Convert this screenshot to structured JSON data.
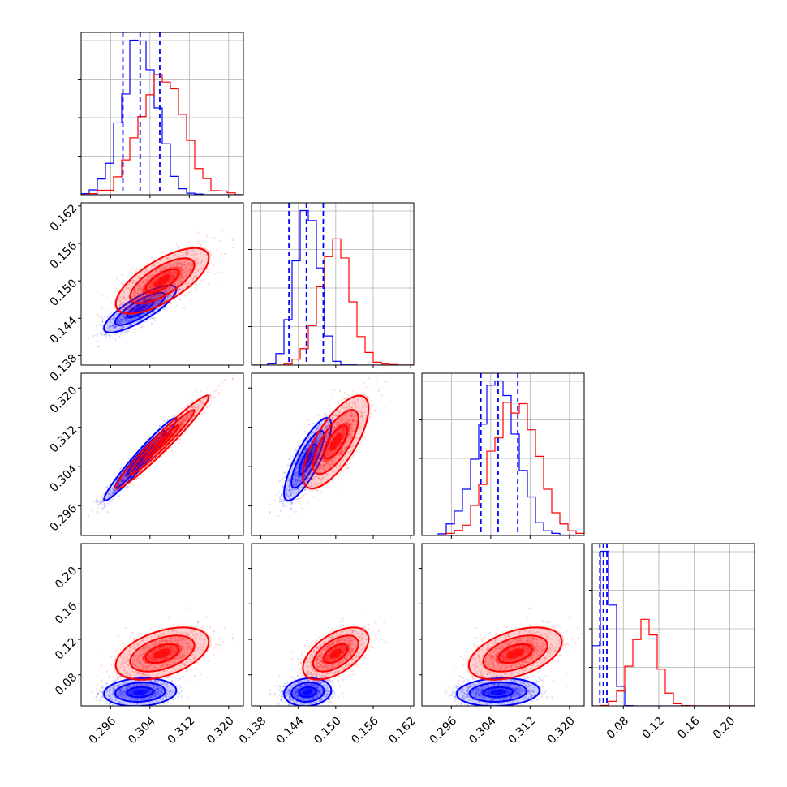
{
  "chart_data": {
    "type": "corner",
    "grid": true,
    "colors": {
      "blue": "#0000ff",
      "red": "#ff0000",
      "grid": "#b0b0b0",
      "frame": "#000000"
    },
    "parameters": [
      {
        "range": [
          0.29,
          0.323
        ],
        "ticks": [
          0.296,
          0.304,
          0.312,
          0.32
        ],
        "tick_labels": [
          "0.296",
          "0.304",
          "0.312",
          "0.320"
        ]
      },
      {
        "range": [
          0.1365,
          0.1625
        ],
        "ticks": [
          0.138,
          0.144,
          0.15,
          0.156,
          0.162
        ],
        "tick_labels": [
          "0.138",
          "0.144",
          "0.150",
          "0.156",
          "0.162"
        ]
      },
      {
        "range": [
          0.29,
          0.323
        ],
        "ticks": [
          0.296,
          0.304,
          0.312,
          0.32
        ],
        "tick_labels": [
          "0.296",
          "0.304",
          "0.312",
          "0.320"
        ]
      },
      {
        "range": [
          0.045,
          0.228
        ],
        "ticks": [
          0.08,
          0.12,
          0.16,
          0.2
        ],
        "tick_labels": [
          "0.08",
          "0.12",
          "0.16",
          "0.20"
        ]
      }
    ],
    "series": [
      {
        "color": "blue",
        "mean": [
          0.302,
          0.1455,
          0.3055,
          0.0605
        ],
        "std": [
          0.0035,
          0.0018,
          0.004,
          0.0075
        ],
        "corr": [
          [
            1,
            0.82,
            0.97,
            0.12
          ],
          [
            0.82,
            1,
            0.82,
            0.12
          ],
          [
            0.97,
            0.82,
            1,
            0.12
          ],
          [
            0.12,
            0.12,
            0.12,
            1
          ]
        ],
        "quantiles": [
          [
            0.2985,
            0.302,
            0.306
          ],
          [
            0.1425,
            0.1453,
            0.148
          ],
          [
            0.302,
            0.3055,
            0.3095
          ],
          [
            0.0535,
            0.0575,
            0.0615
          ]
        ],
        "hist_clip_low": [
          null,
          null,
          null,
          0.05
        ]
      },
      {
        "color": "red",
        "mean": [
          0.3065,
          0.15,
          0.309,
          0.104
        ],
        "std": [
          0.0045,
          0.0025,
          0.0045,
          0.014
        ],
        "corr": [
          [
            1,
            0.7,
            0.97,
            0.45
          ],
          [
            0.7,
            1,
            0.72,
            0.55
          ],
          [
            0.97,
            0.72,
            1,
            0.45
          ],
          [
            0.45,
            0.55,
            0.45,
            1
          ]
        ],
        "quantiles": null,
        "hist_clip_low": [
          null,
          null,
          null,
          null
        ]
      }
    ]
  }
}
